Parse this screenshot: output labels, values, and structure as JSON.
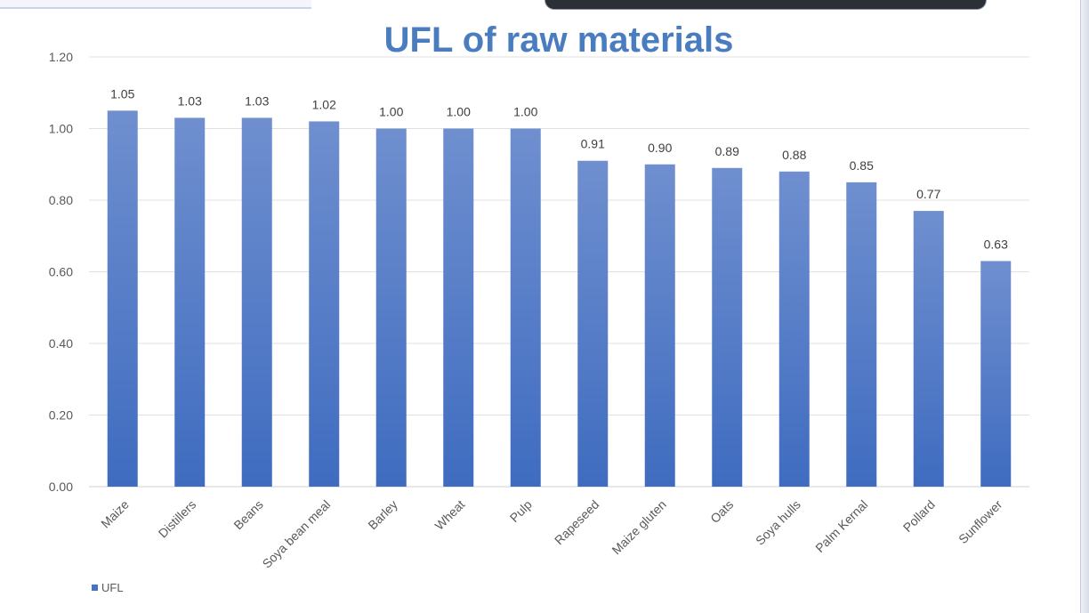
{
  "chart_data": {
    "type": "bar",
    "title": "UFL of raw materials",
    "categories": [
      "Maize",
      "Distillers",
      "Beans",
      "Soya bean meal",
      "Barley",
      "Wheat",
      "Pulp",
      "Rapeseed",
      "Maize gluten",
      "Oats",
      "Soya hulls",
      "Palm Kernal",
      "Pollard",
      "Sunflower"
    ],
    "series": [
      {
        "name": "UFL",
        "values": [
          1.05,
          1.03,
          1.03,
          1.02,
          1.0,
          1.0,
          1.0,
          0.91,
          0.9,
          0.89,
          0.88,
          0.85,
          0.77,
          0.63
        ],
        "labels": [
          "1.05",
          "1.03",
          "1.03",
          "1.02",
          "1.00",
          "1.00",
          "1.00",
          "0.91",
          "0.90",
          "0.89",
          "0.88",
          "0.85",
          "0.77",
          "0.63"
        ]
      }
    ],
    "yticks": [
      "0.00",
      "0.20",
      "0.40",
      "0.60",
      "0.80",
      "1.00",
      "1.20"
    ],
    "ylim": [
      0,
      1.2
    ],
    "grid": true,
    "legend": "bottom-left",
    "colors": {
      "bar_top": "#6f8fcf",
      "bar_bottom": "#3f6cc0",
      "title": "#4a7cc0",
      "legend_swatch": "#4472c4"
    }
  }
}
